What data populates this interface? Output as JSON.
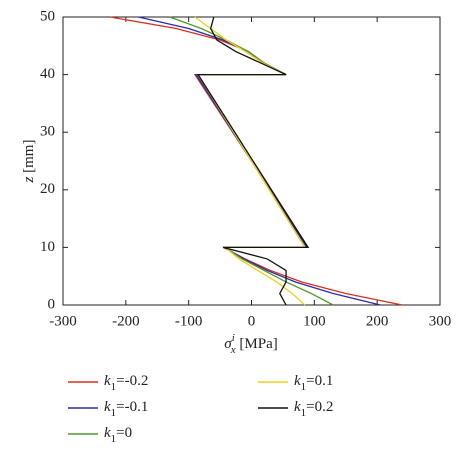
{
  "chart_data": {
    "type": "line",
    "xlabel": {
      "symbol": "σ",
      "subscript": "x",
      "superscript": "i",
      "unit": "[MPa]"
    },
    "ylabel": {
      "symbol": "z",
      "unit": "[mm]"
    },
    "xlim": [
      -300,
      300
    ],
    "xticks": [
      -300,
      -200,
      -100,
      0,
      100,
      200,
      300
    ],
    "ylim": [
      0,
      50
    ],
    "yticks": [
      0,
      10,
      20,
      30,
      40,
      50
    ],
    "y": [
      50,
      48,
      46,
      44,
      42,
      40,
      40,
      10,
      10,
      8,
      6,
      4,
      2,
      0
    ],
    "series": [
      {
        "name": "k1=-0.2",
        "color": "#d7301f",
        "x": [
          -225,
          -120,
          -50,
          -5,
          20,
          55,
          -90,
          90,
          -45,
          -10,
          30,
          80,
          150,
          240
        ]
      },
      {
        "name": "k1=-0.1",
        "color": "#2b2ba8",
        "x": [
          -180,
          -100,
          -45,
          -5,
          20,
          55,
          -88,
          88,
          -43,
          -12,
          25,
          70,
          130,
          205
        ]
      },
      {
        "name": "k1=0",
        "color": "#4f9a2a",
        "x": [
          -130,
          -80,
          -40,
          -5,
          20,
          55,
          -85,
          85,
          -42,
          -15,
          20,
          55,
          95,
          130
        ]
      },
      {
        "name": "k1=0.1",
        "color": "#f2d01c",
        "x": [
          -90,
          -65,
          -40,
          -10,
          18,
          55,
          -85,
          85,
          -42,
          -20,
          10,
          40,
          65,
          85
        ]
      },
      {
        "name": "k1=0.2",
        "color": "#111111",
        "x": [
          -60,
          -65,
          -55,
          -25,
          15,
          55,
          -85,
          90,
          -45,
          25,
          55,
          55,
          45,
          55
        ]
      }
    ]
  }
}
